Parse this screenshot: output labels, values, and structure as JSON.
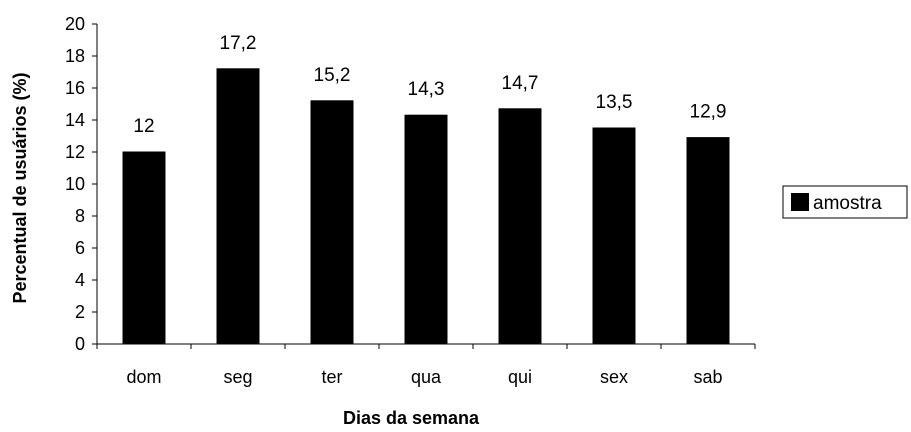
{
  "chart_data": {
    "type": "bar",
    "categories": [
      "dom",
      "seg",
      "ter",
      "qua",
      "qui",
      "sex",
      "sab"
    ],
    "series": [
      {
        "name": "amostra",
        "values": [
          12,
          17.2,
          15.2,
          14.3,
          14.7,
          13.5,
          12.9
        ],
        "color": "#000000"
      }
    ],
    "data_labels": [
      "12",
      "17,2",
      "15,2",
      "14,3",
      "14,7",
      "13,5",
      "12,9"
    ],
    "xlabel": "Dias da semana",
    "ylabel": "Percentual de usuários (%)",
    "ylim": [
      0,
      20
    ],
    "yticks": [
      0,
      2,
      4,
      6,
      8,
      10,
      12,
      14,
      16,
      18,
      20
    ],
    "grid": false,
    "legend_position": "right"
  }
}
